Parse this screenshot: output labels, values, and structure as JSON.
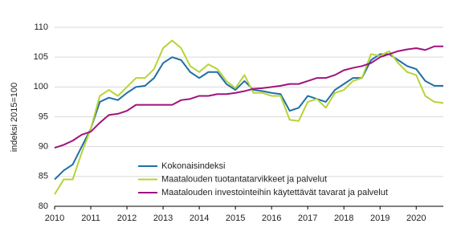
{
  "chart_data": {
    "type": "line",
    "y_label": "indeksi 2015=100",
    "x": [
      2010,
      2010.25,
      2010.5,
      2010.75,
      2011,
      2011.25,
      2011.5,
      2011.75,
      2012,
      2012.25,
      2012.5,
      2012.75,
      2013,
      2013.25,
      2013.5,
      2013.75,
      2014,
      2014.25,
      2014.5,
      2014.75,
      2015,
      2015.25,
      2015.5,
      2015.75,
      2016,
      2016.25,
      2016.5,
      2016.75,
      2017,
      2017.25,
      2017.5,
      2017.75,
      2018,
      2018.25,
      2018.5,
      2018.75,
      2019,
      2019.25,
      2019.5,
      2019.75,
      2020,
      2020.25,
      2020.5,
      2020.75
    ],
    "series": [
      {
        "name": "Kokonaisindeksi",
        "color": "#1f6fa6",
        "values": [
          84.5,
          86,
          87,
          90,
          93,
          97.5,
          98.2,
          97.8,
          99,
          100,
          100.2,
          101.5,
          104,
          105,
          104.5,
          102.5,
          101.5,
          102.5,
          102.5,
          100.5,
          99.5,
          101,
          99.5,
          99.3,
          99,
          98.8,
          96,
          96.5,
          98.5,
          98,
          97.5,
          99.5,
          100.5,
          101.5,
          101.5,
          104.5,
          105.5,
          105.5,
          104.5,
          103.5,
          103,
          101,
          100.2,
          100.2
        ]
      },
      {
        "name": "Maatalouden tuotantatarvikkeet ja palvelut",
        "color": "#b7d335",
        "values": [
          82,
          84.5,
          84.5,
          89,
          93,
          98.5,
          99.5,
          98.5,
          100,
          101.5,
          101.5,
          103,
          106.5,
          107.8,
          106.5,
          103.5,
          102.5,
          103.8,
          103,
          101,
          99.8,
          102,
          99,
          99,
          98.5,
          98.5,
          94.5,
          94.3,
          97.5,
          98,
          96.5,
          99,
          99.5,
          101,
          101.5,
          105.5,
          105.2,
          106,
          104,
          102.5,
          102,
          98.5,
          97.5,
          97.3
        ]
      },
      {
        "name": "Maatalouden investointeihin käytettävät tavarat ja palvelut",
        "color": "#a0137d",
        "values": [
          89.8,
          90.3,
          91,
          92,
          92.5,
          94,
          95.3,
          95.5,
          96,
          97,
          97,
          97,
          97,
          97,
          97.8,
          98,
          98.5,
          98.5,
          98.8,
          98.8,
          99,
          99.3,
          99.7,
          99.8,
          100,
          100.2,
          100.5,
          100.5,
          101,
          101.5,
          101.5,
          102,
          102.8,
          103.2,
          103.5,
          104,
          105,
          105.5,
          106,
          106.3,
          106.5,
          106.2,
          106.8,
          106.8
        ]
      }
    ],
    "xlim": [
      2010,
      2020.75
    ],
    "xticks": [
      2010,
      2011,
      2012,
      2013,
      2014,
      2015,
      2016,
      2017,
      2018,
      2019,
      2020
    ],
    "ylim": [
      80,
      110
    ],
    "yticks": [
      80,
      85,
      90,
      95,
      100,
      105,
      110
    ],
    "grid": true
  }
}
